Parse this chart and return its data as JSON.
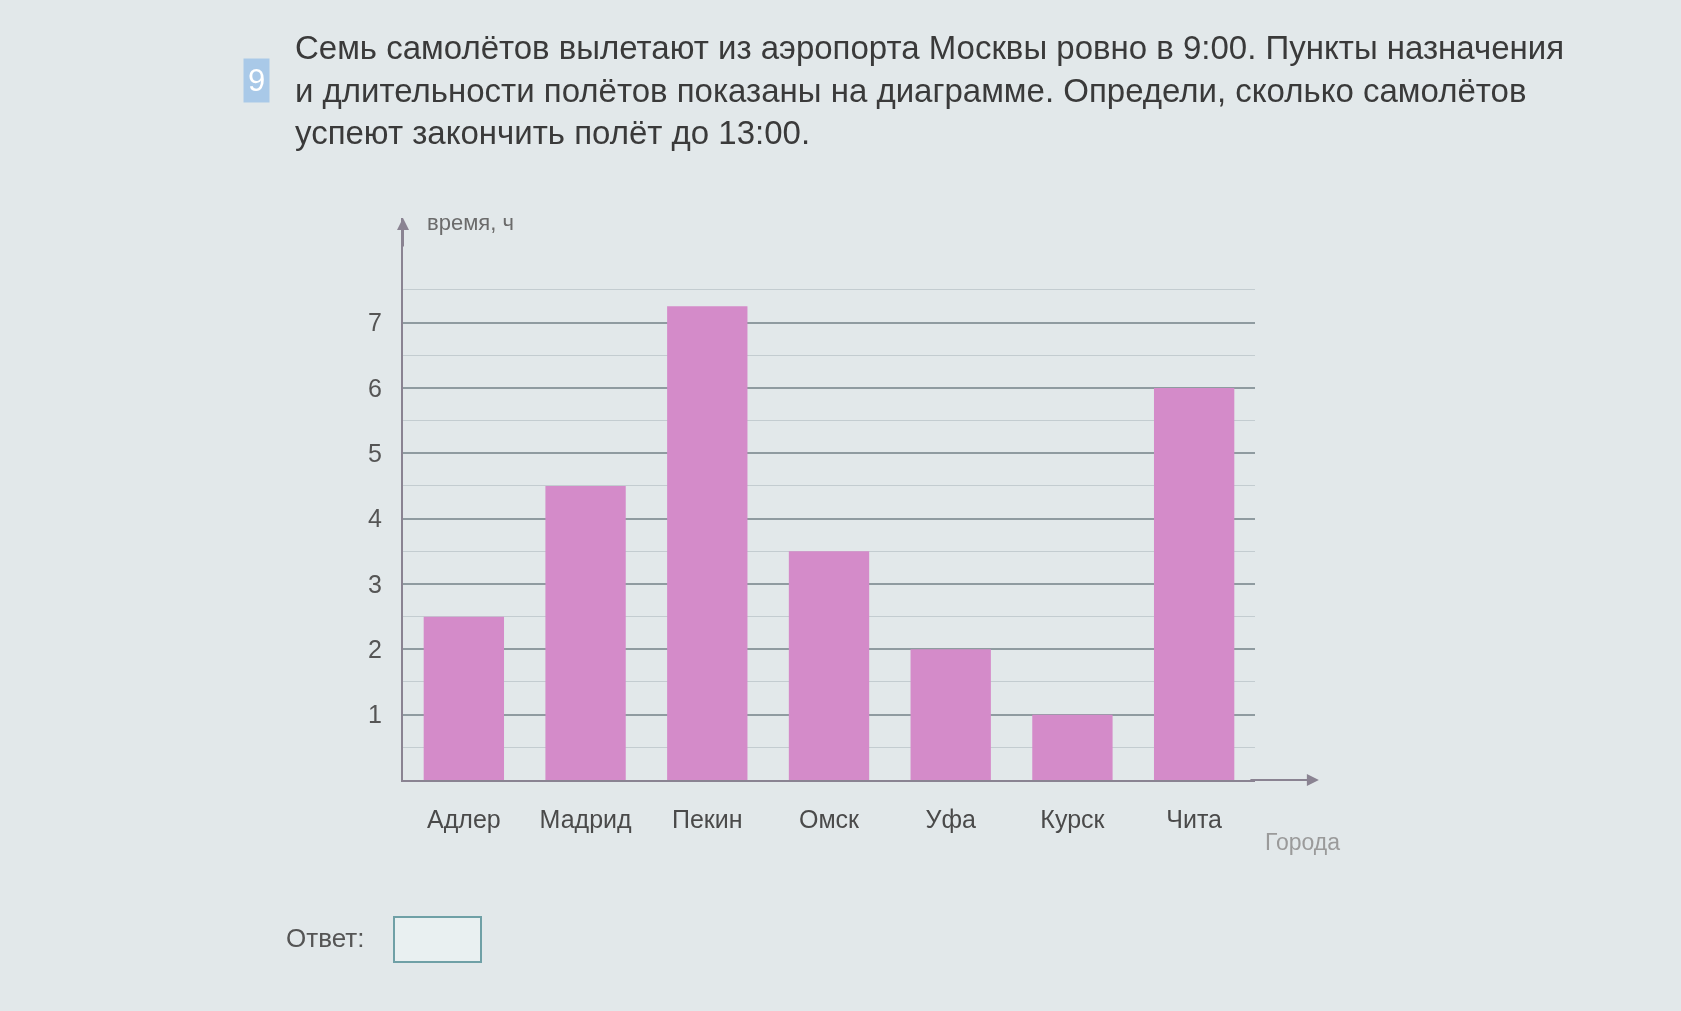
{
  "chart_data": {
    "type": "bar",
    "title": "Семь самолётов вылетают из аэропорта Москвы ровно в 9:00. Пункты назначения и длительности полётов показаны на диаграмме. Определи, сколько самолётов успеют закончить полёт до 13:00.",
    "xlabel": "Города",
    "ylabel": "время, ч",
    "categories": [
      "Адлер",
      "Мадрид",
      "Пекин",
      "Омск",
      "Уфа",
      "Курск",
      "Чита"
    ],
    "values": [
      2.5,
      4.5,
      7.25,
      3.5,
      2,
      1,
      6
    ],
    "color": "#d48bc9",
    "ylim": [
      0,
      8.6
    ],
    "yticks": [
      {
        "value": 0.5,
        "label": null
      },
      1,
      {
        "value": 1.5,
        "label": null
      },
      2,
      {
        "value": 2.5,
        "label": null
      },
      3,
      {
        "value": 3.5,
        "label": null
      },
      4,
      {
        "value": 4.5,
        "label": null
      },
      5,
      {
        "value": 5.5,
        "label": null
      },
      6,
      {
        "value": 6.5,
        "label": null
      },
      7,
      {
        "value": 7.5,
        "label": null
      }
    ],
    "grid": "y",
    "annotations": [
      "9",
      "Ответ:"
    ]
  }
}
